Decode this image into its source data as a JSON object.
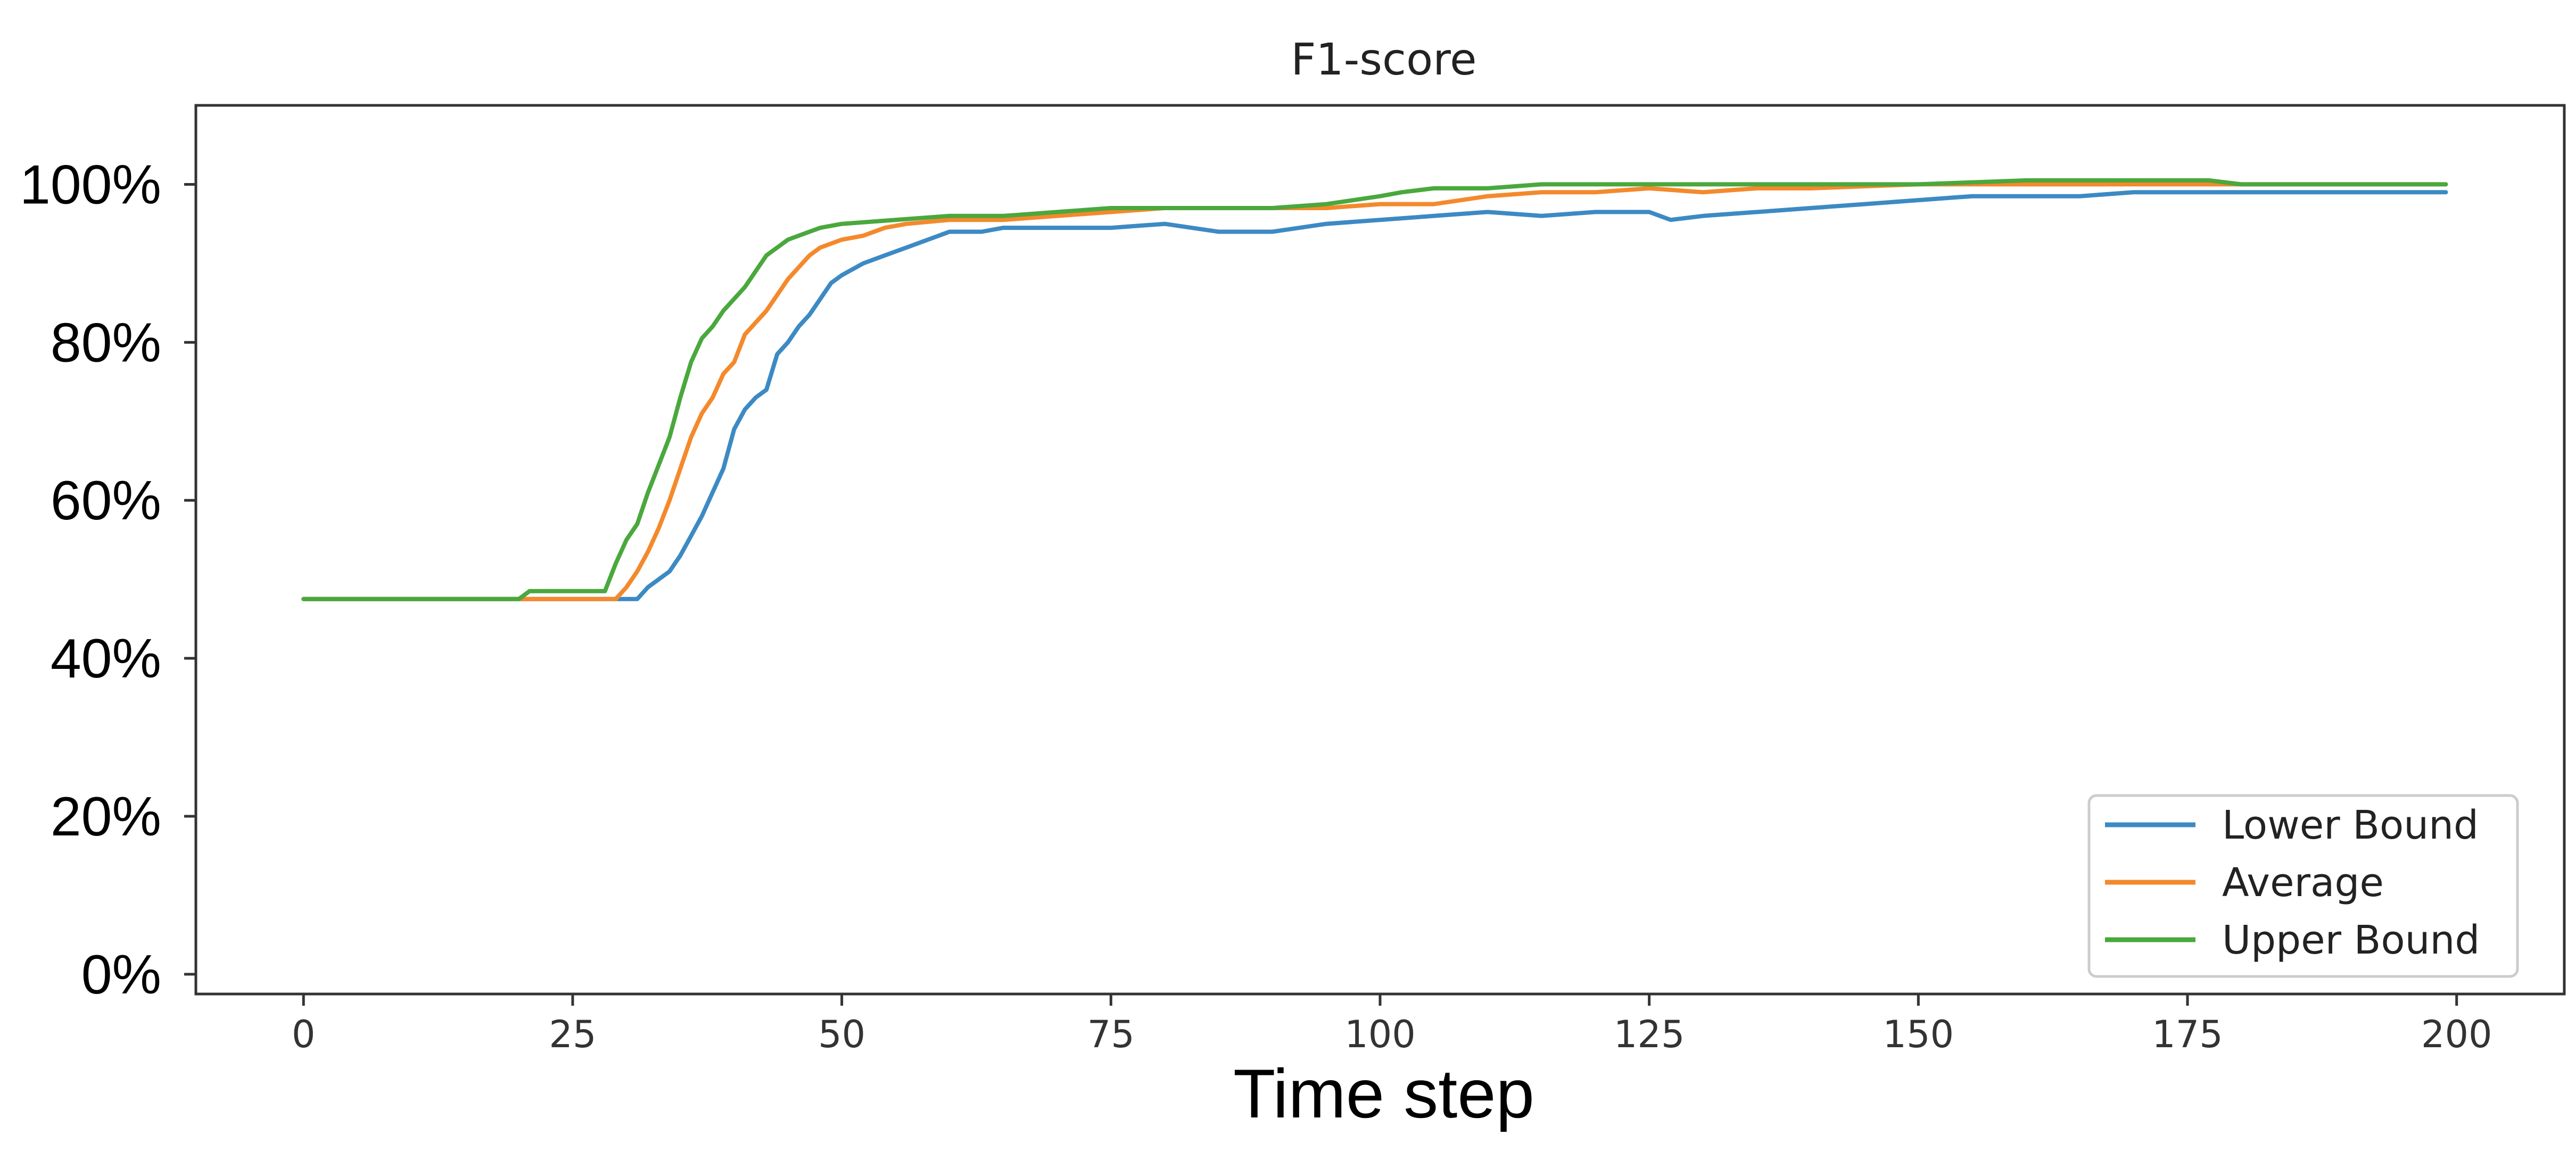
{
  "chart_data": {
    "type": "line",
    "title": "F1-score",
    "xlabel": "Time step",
    "ylabel": "",
    "xlim": [
      -10,
      210
    ],
    "ylim": [
      -2.5,
      110
    ],
    "grid": false,
    "legend_position": "bottom-right",
    "x_ticks": [
      0,
      25,
      50,
      75,
      100,
      125,
      150,
      175,
      200
    ],
    "x_tick_labels": [
      "0",
      "25",
      "50",
      "75",
      "100",
      "125",
      "150",
      "175",
      "200"
    ],
    "y_ticks": [
      0,
      20,
      40,
      60,
      80,
      100
    ],
    "y_tick_labels": [
      "0%",
      "20%",
      "40%",
      "60%",
      "80%",
      "100%"
    ],
    "series": [
      {
        "name": "Lower Bound",
        "color": "#3c8ac4",
        "points": [
          [
            0,
            47.5
          ],
          [
            20,
            47.5
          ],
          [
            28,
            47.5
          ],
          [
            31,
            47.5
          ],
          [
            32,
            49
          ],
          [
            34,
            51
          ],
          [
            35,
            53
          ],
          [
            36,
            55.5
          ],
          [
            37,
            58
          ],
          [
            38,
            61
          ],
          [
            39,
            64
          ],
          [
            40,
            69
          ],
          [
            41,
            71.5
          ],
          [
            42,
            73
          ],
          [
            43,
            74
          ],
          [
            44,
            78.5
          ],
          [
            45,
            80
          ],
          [
            46,
            82
          ],
          [
            47,
            83.5
          ],
          [
            48,
            85.5
          ],
          [
            49,
            87.5
          ],
          [
            50,
            88.5
          ],
          [
            52,
            90
          ],
          [
            54,
            91
          ],
          [
            56,
            92
          ],
          [
            58,
            93
          ],
          [
            60,
            94
          ],
          [
            63,
            94
          ],
          [
            65,
            94.5
          ],
          [
            70,
            94.5
          ],
          [
            75,
            94.5
          ],
          [
            80,
            95
          ],
          [
            85,
            94
          ],
          [
            90,
            94
          ],
          [
            95,
            95
          ],
          [
            100,
            95.5
          ],
          [
            105,
            96
          ],
          [
            110,
            96.5
          ],
          [
            115,
            96
          ],
          [
            120,
            96.5
          ],
          [
            125,
            96.5
          ],
          [
            127,
            95.5
          ],
          [
            130,
            96
          ],
          [
            135,
            96.5
          ],
          [
            140,
            97
          ],
          [
            145,
            97.5
          ],
          [
            150,
            98
          ],
          [
            155,
            98.5
          ],
          [
            165,
            98.5
          ],
          [
            170,
            99
          ],
          [
            199,
            99
          ]
        ]
      },
      {
        "name": "Average",
        "color": "#f4892c",
        "points": [
          [
            0,
            47.5
          ],
          [
            20,
            47.5
          ],
          [
            28,
            47.5
          ],
          [
            29,
            47.5
          ],
          [
            30,
            49
          ],
          [
            31,
            51
          ],
          [
            32,
            53.5
          ],
          [
            33,
            56.5
          ],
          [
            34,
            60
          ],
          [
            35,
            64
          ],
          [
            36,
            68
          ],
          [
            37,
            71
          ],
          [
            38,
            73
          ],
          [
            39,
            76
          ],
          [
            40,
            77.5
          ],
          [
            41,
            81
          ],
          [
            42,
            82.5
          ],
          [
            43,
            84
          ],
          [
            44,
            86
          ],
          [
            45,
            88
          ],
          [
            46,
            89.5
          ],
          [
            47,
            91
          ],
          [
            48,
            92
          ],
          [
            50,
            93
          ],
          [
            52,
            93.5
          ],
          [
            54,
            94.5
          ],
          [
            56,
            95
          ],
          [
            60,
            95.5
          ],
          [
            65,
            95.5
          ],
          [
            70,
            96
          ],
          [
            75,
            96.5
          ],
          [
            80,
            97
          ],
          [
            85,
            97
          ],
          [
            90,
            97
          ],
          [
            95,
            97
          ],
          [
            100,
            97.5
          ],
          [
            105,
            97.5
          ],
          [
            110,
            98.5
          ],
          [
            115,
            99
          ],
          [
            120,
            99
          ],
          [
            125,
            99.5
          ],
          [
            130,
            99
          ],
          [
            135,
            99.5
          ],
          [
            140,
            99.5
          ],
          [
            150,
            100
          ],
          [
            160,
            100
          ],
          [
            175,
            100
          ],
          [
            199,
            100
          ]
        ]
      },
      {
        "name": "Upper Bound",
        "color": "#4aa83d",
        "points": [
          [
            0,
            47.5
          ],
          [
            20,
            47.5
          ],
          [
            21,
            48.5
          ],
          [
            25,
            48.5
          ],
          [
            28,
            48.5
          ],
          [
            29,
            52
          ],
          [
            30,
            55
          ],
          [
            31,
            57
          ],
          [
            32,
            61
          ],
          [
            33,
            64.5
          ],
          [
            34,
            68
          ],
          [
            35,
            73
          ],
          [
            36,
            77.5
          ],
          [
            37,
            80.5
          ],
          [
            38,
            82
          ],
          [
            39,
            84
          ],
          [
            40,
            85.5
          ],
          [
            41,
            87
          ],
          [
            42,
            89
          ],
          [
            43,
            91
          ],
          [
            44,
            92
          ],
          [
            45,
            93
          ],
          [
            46,
            93.5
          ],
          [
            48,
            94.5
          ],
          [
            50,
            95
          ],
          [
            55,
            95.5
          ],
          [
            60,
            96
          ],
          [
            65,
            96
          ],
          [
            70,
            96.5
          ],
          [
            75,
            97
          ],
          [
            80,
            97
          ],
          [
            85,
            97
          ],
          [
            90,
            97
          ],
          [
            95,
            97.5
          ],
          [
            100,
            98.5
          ],
          [
            102,
            99
          ],
          [
            105,
            99.5
          ],
          [
            110,
            99.5
          ],
          [
            115,
            100
          ],
          [
            130,
            100
          ],
          [
            150,
            100
          ],
          [
            160,
            100.5
          ],
          [
            177,
            100.5
          ],
          [
            180,
            100
          ],
          [
            199,
            100
          ]
        ]
      }
    ]
  }
}
